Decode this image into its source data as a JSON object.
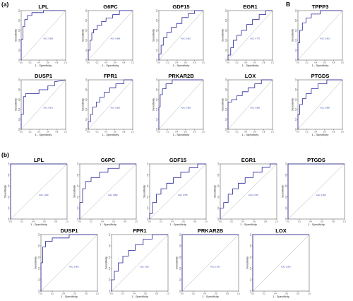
{
  "figure": {
    "panel_a_label": "(a)",
    "panel_b_label": "(b)",
    "inset_label": "B"
  },
  "axis_text": {
    "xlabel": "1 - Specificity",
    "ylabel": "Sensitivity",
    "ticks": [
      "0.0",
      "0.2",
      "0.4",
      "0.6",
      "0.8",
      "1.0"
    ]
  },
  "colors": {
    "curve": "#24239a",
    "diagonal": "#9a9a9a",
    "frame": "#444444"
  },
  "chart_data": [
    {
      "type": "line",
      "panel": "a",
      "title": "LPL",
      "auc_text": "AUC: 0.956",
      "xlabel": "1 - Specificity",
      "ylabel": "Sensitivity",
      "xlim": [
        0,
        1
      ],
      "ylim": [
        0,
        1
      ],
      "x": [
        0,
        0,
        0.04,
        0.04,
        0.08,
        0.08,
        0.14,
        0.14,
        0.24,
        0.24,
        0.5,
        0.5,
        1
      ],
      "y": [
        0,
        0.42,
        0.42,
        0.68,
        0.68,
        0.82,
        0.82,
        0.9,
        0.9,
        0.96,
        0.96,
        1,
        1
      ]
    },
    {
      "type": "line",
      "panel": "a",
      "title": "G6PC",
      "auc_text": "AUC: 0.868",
      "xlabel": "1 - Specificity",
      "ylabel": "Sensitivity",
      "xlim": [
        0,
        1
      ],
      "ylim": [
        0,
        1
      ],
      "x": [
        0,
        0,
        0.04,
        0.04,
        0.08,
        0.08,
        0.12,
        0.12,
        0.2,
        0.2,
        0.3,
        0.3,
        0.4,
        0.4,
        0.55,
        0.55,
        0.7,
        0.7,
        1
      ],
      "y": [
        0,
        0.2,
        0.2,
        0.4,
        0.4,
        0.55,
        0.55,
        0.62,
        0.62,
        0.7,
        0.7,
        0.78,
        0.78,
        0.85,
        0.85,
        0.92,
        0.92,
        1,
        1
      ]
    },
    {
      "type": "line",
      "panel": "a",
      "title": "GDF15",
      "auc_text": "AUC: 0.810",
      "xlabel": "1 - Specificity",
      "ylabel": "Sensitivity",
      "xlim": [
        0,
        1
      ],
      "ylim": [
        0,
        1
      ],
      "x": [
        0,
        0,
        0.05,
        0.05,
        0.1,
        0.1,
        0.18,
        0.18,
        0.28,
        0.28,
        0.4,
        0.4,
        0.52,
        0.52,
        0.66,
        0.66,
        0.8,
        0.8,
        1
      ],
      "y": [
        0,
        0.12,
        0.12,
        0.3,
        0.3,
        0.45,
        0.45,
        0.56,
        0.56,
        0.66,
        0.66,
        0.74,
        0.74,
        0.86,
        0.86,
        0.94,
        0.94,
        1,
        1
      ]
    },
    {
      "type": "line",
      "panel": "a",
      "title": "EGR1",
      "auc_text": "AUC: 0.775",
      "xlabel": "1 - Specificity",
      "ylabel": "Sensitivity",
      "xlim": [
        0,
        1
      ],
      "ylim": [
        0,
        1
      ],
      "x": [
        0,
        0,
        0.06,
        0.06,
        0.12,
        0.12,
        0.2,
        0.2,
        0.3,
        0.3,
        0.42,
        0.42,
        0.55,
        0.55,
        0.7,
        0.7,
        0.85,
        0.85,
        1
      ],
      "y": [
        0,
        0.1,
        0.1,
        0.25,
        0.25,
        0.4,
        0.4,
        0.5,
        0.5,
        0.6,
        0.6,
        0.72,
        0.72,
        0.82,
        0.82,
        0.92,
        0.92,
        1,
        1
      ]
    },
    {
      "type": "line",
      "panel": "a",
      "title": "TPPP3",
      "auc_text": "AUC: 0.915",
      "xlabel": "1 - Specificity",
      "ylabel": "Sensitivity",
      "xlim": [
        0,
        1
      ],
      "ylim": [
        0,
        1
      ],
      "x": [
        0,
        0,
        0.04,
        0.04,
        0.1,
        0.1,
        0.18,
        0.18,
        0.3,
        0.3,
        0.5,
        0.5,
        1
      ],
      "y": [
        0,
        0.35,
        0.35,
        0.6,
        0.6,
        0.75,
        0.75,
        0.85,
        0.85,
        0.93,
        0.93,
        1,
        1
      ]
    },
    {
      "type": "line",
      "panel": "a",
      "title": "DUSP1",
      "auc_text": "AUC: 0.872",
      "xlabel": "1 - Specificity",
      "ylabel": "Sensitivity",
      "xlim": [
        0,
        1
      ],
      "ylim": [
        0,
        1
      ],
      "x": [
        0,
        0,
        0.05,
        0.05,
        0.1,
        0.1,
        0.4,
        0.4,
        0.6,
        0.6,
        0.75,
        0.75,
        1
      ],
      "y": [
        0,
        0.3,
        0.3,
        0.66,
        0.66,
        0.72,
        0.72,
        0.8,
        0.8,
        0.88,
        0.88,
        0.96,
        1
      ]
    },
    {
      "type": "line",
      "panel": "a",
      "title": "FPR1",
      "auc_text": "AUC: 0.815",
      "xlabel": "1 - Specificity",
      "ylabel": "Sensitivity",
      "xlim": [
        0,
        1
      ],
      "ylim": [
        0,
        1
      ],
      "x": [
        0,
        0,
        0.05,
        0.05,
        0.1,
        0.1,
        0.18,
        0.18,
        0.26,
        0.26,
        0.36,
        0.36,
        0.48,
        0.48,
        0.62,
        0.62,
        0.8,
        0.8,
        1
      ],
      "y": [
        0,
        0.15,
        0.15,
        0.3,
        0.3,
        0.45,
        0.45,
        0.55,
        0.55,
        0.65,
        0.65,
        0.75,
        0.75,
        0.84,
        0.84,
        0.92,
        0.92,
        1,
        1
      ]
    },
    {
      "type": "line",
      "panel": "a",
      "title": "PRKAR2B",
      "auc_text": "AUC: 0.955",
      "xlabel": "1 - Specificity",
      "ylabel": "Sensitivity",
      "xlim": [
        0,
        1
      ],
      "ylim": [
        0,
        1
      ],
      "x": [
        0,
        0,
        0.03,
        0.03,
        0.08,
        0.08,
        0.16,
        0.16,
        0.3,
        0.3,
        1
      ],
      "y": [
        0,
        0.45,
        0.45,
        0.7,
        0.7,
        0.82,
        0.82,
        0.92,
        0.92,
        1,
        1
      ]
    },
    {
      "type": "line",
      "panel": "a",
      "title": "LOX",
      "auc_text": "AUC: 0.839",
      "xlabel": "1 - Specificity",
      "ylabel": "Sensitivity",
      "xlim": [
        0,
        1
      ],
      "ylim": [
        0,
        1
      ],
      "x": [
        0,
        0,
        0.08,
        0.08,
        0.2,
        0.2,
        0.32,
        0.32,
        0.45,
        0.45,
        0.6,
        0.6,
        0.75,
        0.75,
        1
      ],
      "y": [
        0,
        0.55,
        0.55,
        0.6,
        0.6,
        0.68,
        0.68,
        0.76,
        0.76,
        0.84,
        0.84,
        0.92,
        0.92,
        1,
        1
      ]
    },
    {
      "type": "line",
      "panel": "a",
      "title": "PTGDS",
      "auc_text": "AUC: 0.880",
      "xlabel": "1 - Specificity",
      "ylabel": "Sensitivity",
      "xlim": [
        0,
        1
      ],
      "ylim": [
        0,
        1
      ],
      "x": [
        0,
        0,
        0.04,
        0.04,
        0.1,
        0.1,
        0.18,
        0.18,
        0.3,
        0.3,
        0.45,
        0.45,
        0.65,
        0.65,
        1
      ],
      "y": [
        0,
        0.3,
        0.3,
        0.5,
        0.5,
        0.62,
        0.62,
        0.72,
        0.72,
        0.82,
        0.82,
        0.92,
        0.92,
        1,
        1
      ]
    },
    {
      "type": "line",
      "panel": "b",
      "title": "LPL",
      "auc_text": "AUC: 1.000",
      "xlabel": "1 - Specificity",
      "ylabel": "Sensitivity",
      "xlim": [
        0,
        1
      ],
      "ylim": [
        0,
        1
      ],
      "x": [
        0,
        0,
        1
      ],
      "y": [
        0,
        1,
        1
      ]
    },
    {
      "type": "line",
      "panel": "b",
      "title": "G6PC",
      "auc_text": "AUC: 0.863",
      "xlabel": "1 - Specificity",
      "ylabel": "Sensitivity",
      "xlim": [
        0,
        1
      ],
      "ylim": [
        0,
        1
      ],
      "x": [
        0,
        0,
        0.05,
        0.05,
        0.1,
        0.1,
        0.2,
        0.2,
        0.35,
        0.35,
        0.5,
        0.5,
        0.7,
        0.7,
        1
      ],
      "y": [
        0,
        0.3,
        0.3,
        0.55,
        0.55,
        0.68,
        0.68,
        0.75,
        0.75,
        0.85,
        0.85,
        0.92,
        0.92,
        1,
        1
      ]
    },
    {
      "type": "line",
      "panel": "b",
      "title": "GDF15",
      "auc_text": "AUC: 0.795",
      "xlabel": "1 - Specificity",
      "ylabel": "Sensitivity",
      "xlim": [
        0,
        1
      ],
      "ylim": [
        0,
        1
      ],
      "x": [
        0,
        0,
        0.05,
        0.05,
        0.12,
        0.12,
        0.2,
        0.2,
        0.3,
        0.3,
        0.42,
        0.42,
        0.55,
        0.55,
        0.7,
        0.7,
        0.85,
        0.85,
        1
      ],
      "y": [
        0,
        0.1,
        0.1,
        0.3,
        0.3,
        0.45,
        0.45,
        0.55,
        0.55,
        0.65,
        0.65,
        0.75,
        0.75,
        0.85,
        0.85,
        0.93,
        0.93,
        1,
        1
      ]
    },
    {
      "type": "line",
      "panel": "b",
      "title": "EGR1",
      "auc_text": "AUC: 0.769",
      "xlabel": "1 - Specificity",
      "ylabel": "Sensitivity",
      "xlim": [
        0,
        1
      ],
      "ylim": [
        0,
        1
      ],
      "x": [
        0,
        0,
        0.06,
        0.06,
        0.14,
        0.14,
        0.22,
        0.22,
        0.32,
        0.32,
        0.44,
        0.44,
        0.58,
        0.58,
        0.74,
        0.74,
        0.88,
        0.88,
        1
      ],
      "y": [
        0,
        0.2,
        0.2,
        0.3,
        0.3,
        0.45,
        0.45,
        0.55,
        0.55,
        0.65,
        0.65,
        0.75,
        0.75,
        0.85,
        0.85,
        0.94,
        0.94,
        1,
        1
      ]
    },
    {
      "type": "line",
      "panel": "b",
      "title": "PTGDS",
      "auc_text": "AUC: 1.000",
      "xlabel": "1 - Specificity",
      "ylabel": "Sensitivity",
      "xlim": [
        0,
        1
      ],
      "ylim": [
        0,
        1
      ],
      "x": [
        0,
        0,
        1
      ],
      "y": [
        0,
        1,
        1
      ]
    },
    {
      "type": "line",
      "panel": "b",
      "title": "DUSP1",
      "auc_text": "AUC: 0.965",
      "xlabel": "1 - Specificity",
      "ylabel": "Sensitivity",
      "xlim": [
        0,
        1
      ],
      "ylim": [
        0,
        1
      ],
      "x": [
        0,
        0,
        0.03,
        0.03,
        0.08,
        0.08,
        0.2,
        0.2,
        0.5,
        0.5,
        1
      ],
      "y": [
        0,
        0.5,
        0.5,
        0.78,
        0.78,
        0.88,
        0.88,
        0.94,
        0.94,
        1,
        1
      ]
    },
    {
      "type": "line",
      "panel": "b",
      "title": "FPR1",
      "auc_text": "AUC: 0.817",
      "xlabel": "1 - Specificity",
      "ylabel": "Sensitivity",
      "xlim": [
        0,
        1
      ],
      "ylim": [
        0,
        1
      ],
      "x": [
        0,
        0,
        0.05,
        0.05,
        0.12,
        0.12,
        0.2,
        0.2,
        0.3,
        0.3,
        0.42,
        0.42,
        0.56,
        0.56,
        0.72,
        0.72,
        1
      ],
      "y": [
        0,
        0.2,
        0.2,
        0.35,
        0.35,
        0.5,
        0.5,
        0.62,
        0.62,
        0.72,
        0.72,
        0.82,
        0.82,
        0.92,
        0.92,
        1,
        1
      ]
    },
    {
      "type": "line",
      "panel": "b",
      "title": "PRKAR2B",
      "auc_text": "AUC: 1.000",
      "xlabel": "1 - Specificity",
      "ylabel": "Sensitivity",
      "xlim": [
        0,
        1
      ],
      "ylim": [
        0,
        1
      ],
      "x": [
        0,
        0,
        1
      ],
      "y": [
        0,
        1,
        1
      ]
    },
    {
      "type": "line",
      "panel": "b",
      "title": "LOX",
      "auc_text": "AUC: 1.000",
      "xlabel": "1 - Specificity",
      "ylabel": "Sensitivity",
      "xlim": [
        0,
        1
      ],
      "ylim": [
        0,
        1
      ],
      "x": [
        0,
        0,
        1
      ],
      "y": [
        0,
        1,
        1
      ]
    }
  ]
}
